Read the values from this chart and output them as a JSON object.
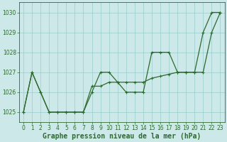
{
  "line1_smooth": {
    "x": [
      0,
      1,
      2,
      3,
      4,
      5,
      6,
      7,
      8,
      9,
      10,
      11,
      12,
      13,
      14,
      15,
      16,
      17,
      18,
      19,
      20,
      21,
      22,
      23
    ],
    "y": [
      1025.0,
      1027.0,
      1026.0,
      1025.0,
      1025.0,
      1025.0,
      1025.0,
      1025.0,
      1026.3,
      1026.3,
      1026.5,
      1026.5,
      1026.5,
      1026.5,
      1026.5,
      1026.7,
      1026.8,
      1026.9,
      1027.0,
      1027.0,
      1027.0,
      1027.0,
      1029.0,
      1030.0
    ]
  },
  "line2_detail": {
    "x": [
      0,
      1,
      2,
      3,
      4,
      5,
      6,
      7,
      8,
      9,
      10,
      11,
      12,
      13,
      14,
      15,
      16,
      17,
      18,
      19,
      20,
      21,
      22,
      23
    ],
    "y": [
      1025.0,
      1027.0,
      1026.0,
      1025.0,
      1025.0,
      1025.0,
      1025.0,
      1025.0,
      1026.0,
      1027.0,
      1027.0,
      1026.5,
      1026.0,
      1026.0,
      1026.0,
      1028.0,
      1028.0,
      1028.0,
      1027.0,
      1027.0,
      1027.0,
      1029.0,
      1030.0,
      1030.0
    ]
  },
  "color": "#2d6a2d",
  "bg_color": "#cce8e8",
  "grid_color": "#99cccc",
  "xlabel": "Graphe pression niveau de la mer (hPa)",
  "ylim": [
    1024.5,
    1030.5
  ],
  "xlim": [
    -0.5,
    23.5
  ],
  "yticks": [
    1025,
    1026,
    1027,
    1028,
    1029,
    1030
  ],
  "xticks": [
    0,
    1,
    2,
    3,
    4,
    5,
    6,
    7,
    8,
    9,
    10,
    11,
    12,
    13,
    14,
    15,
    16,
    17,
    18,
    19,
    20,
    21,
    22,
    23
  ],
  "marker": "+",
  "marker_size": 3.5,
  "linewidth": 0.9,
  "xlabel_fontsize": 7.0,
  "tick_fontsize": 5.5
}
